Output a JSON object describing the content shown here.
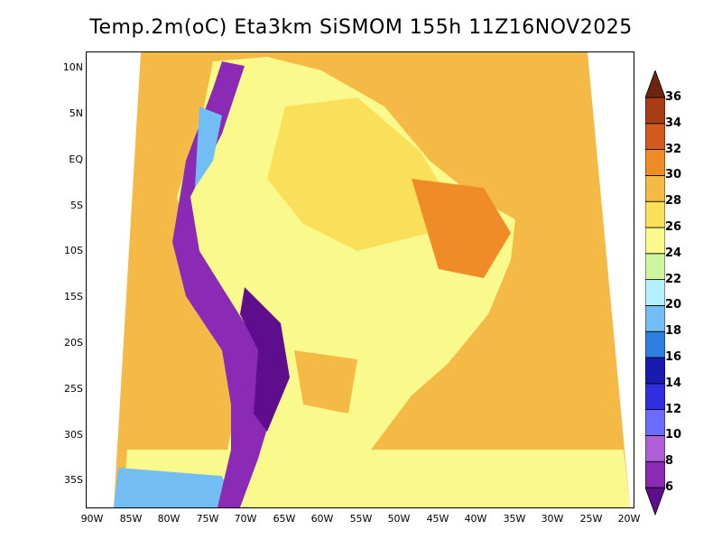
{
  "title": "Temp.2m(oC) Eta3km SiSMOM 155h 11Z16NOV2025",
  "map": {
    "lat_labels": [
      "10N",
      "5N",
      "EQ",
      "5S",
      "10S",
      "15S",
      "20S",
      "25S",
      "30S",
      "35S"
    ],
    "lon_labels": [
      "90W",
      "85W",
      "80W",
      "75W",
      "70W",
      "65W",
      "60W",
      "55W",
      "50W",
      "45W",
      "40W",
      "35W",
      "30W",
      "25W",
      "20W"
    ],
    "lat_range": [
      -38,
      11
    ],
    "lon_range": [
      -91,
      -20
    ]
  },
  "colorbar": {
    "labels": [
      "6",
      "8",
      "10",
      "12",
      "14",
      "16",
      "18",
      "20",
      "22",
      "24",
      "26",
      "28",
      "30",
      "32",
      "34",
      "36"
    ],
    "colors": [
      "#5e0e8c",
      "#8a2ab5",
      "#b05fd6",
      "#6b6bff",
      "#2f2fe0",
      "#1a1ab0",
      "#2f7fe0",
      "#73bdf5",
      "#b5f0ff",
      "#d0f5a0",
      "#fafa8c",
      "#fae05a",
      "#f5b945",
      "#f08c28",
      "#d25a1e",
      "#a83c14",
      "#6e2410"
    ],
    "min": 6,
    "max": 36,
    "step": 2
  }
}
